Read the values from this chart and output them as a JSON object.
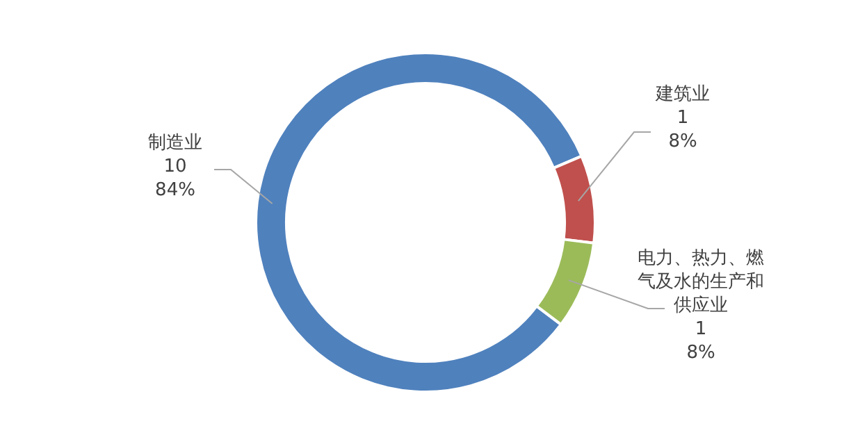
{
  "chart_data": {
    "type": "donut",
    "categories": [
      "制造业",
      "建筑业",
      "电力、热力、燃气及水的生产和供应业"
    ],
    "values": [
      10,
      1,
      1
    ],
    "colors": [
      "#4f81bd",
      "#c0504d",
      "#9bbb59"
    ],
    "value_labels": [
      "10\n84%",
      "1\n8%",
      "1\n8%"
    ],
    "legend": false
  }
}
